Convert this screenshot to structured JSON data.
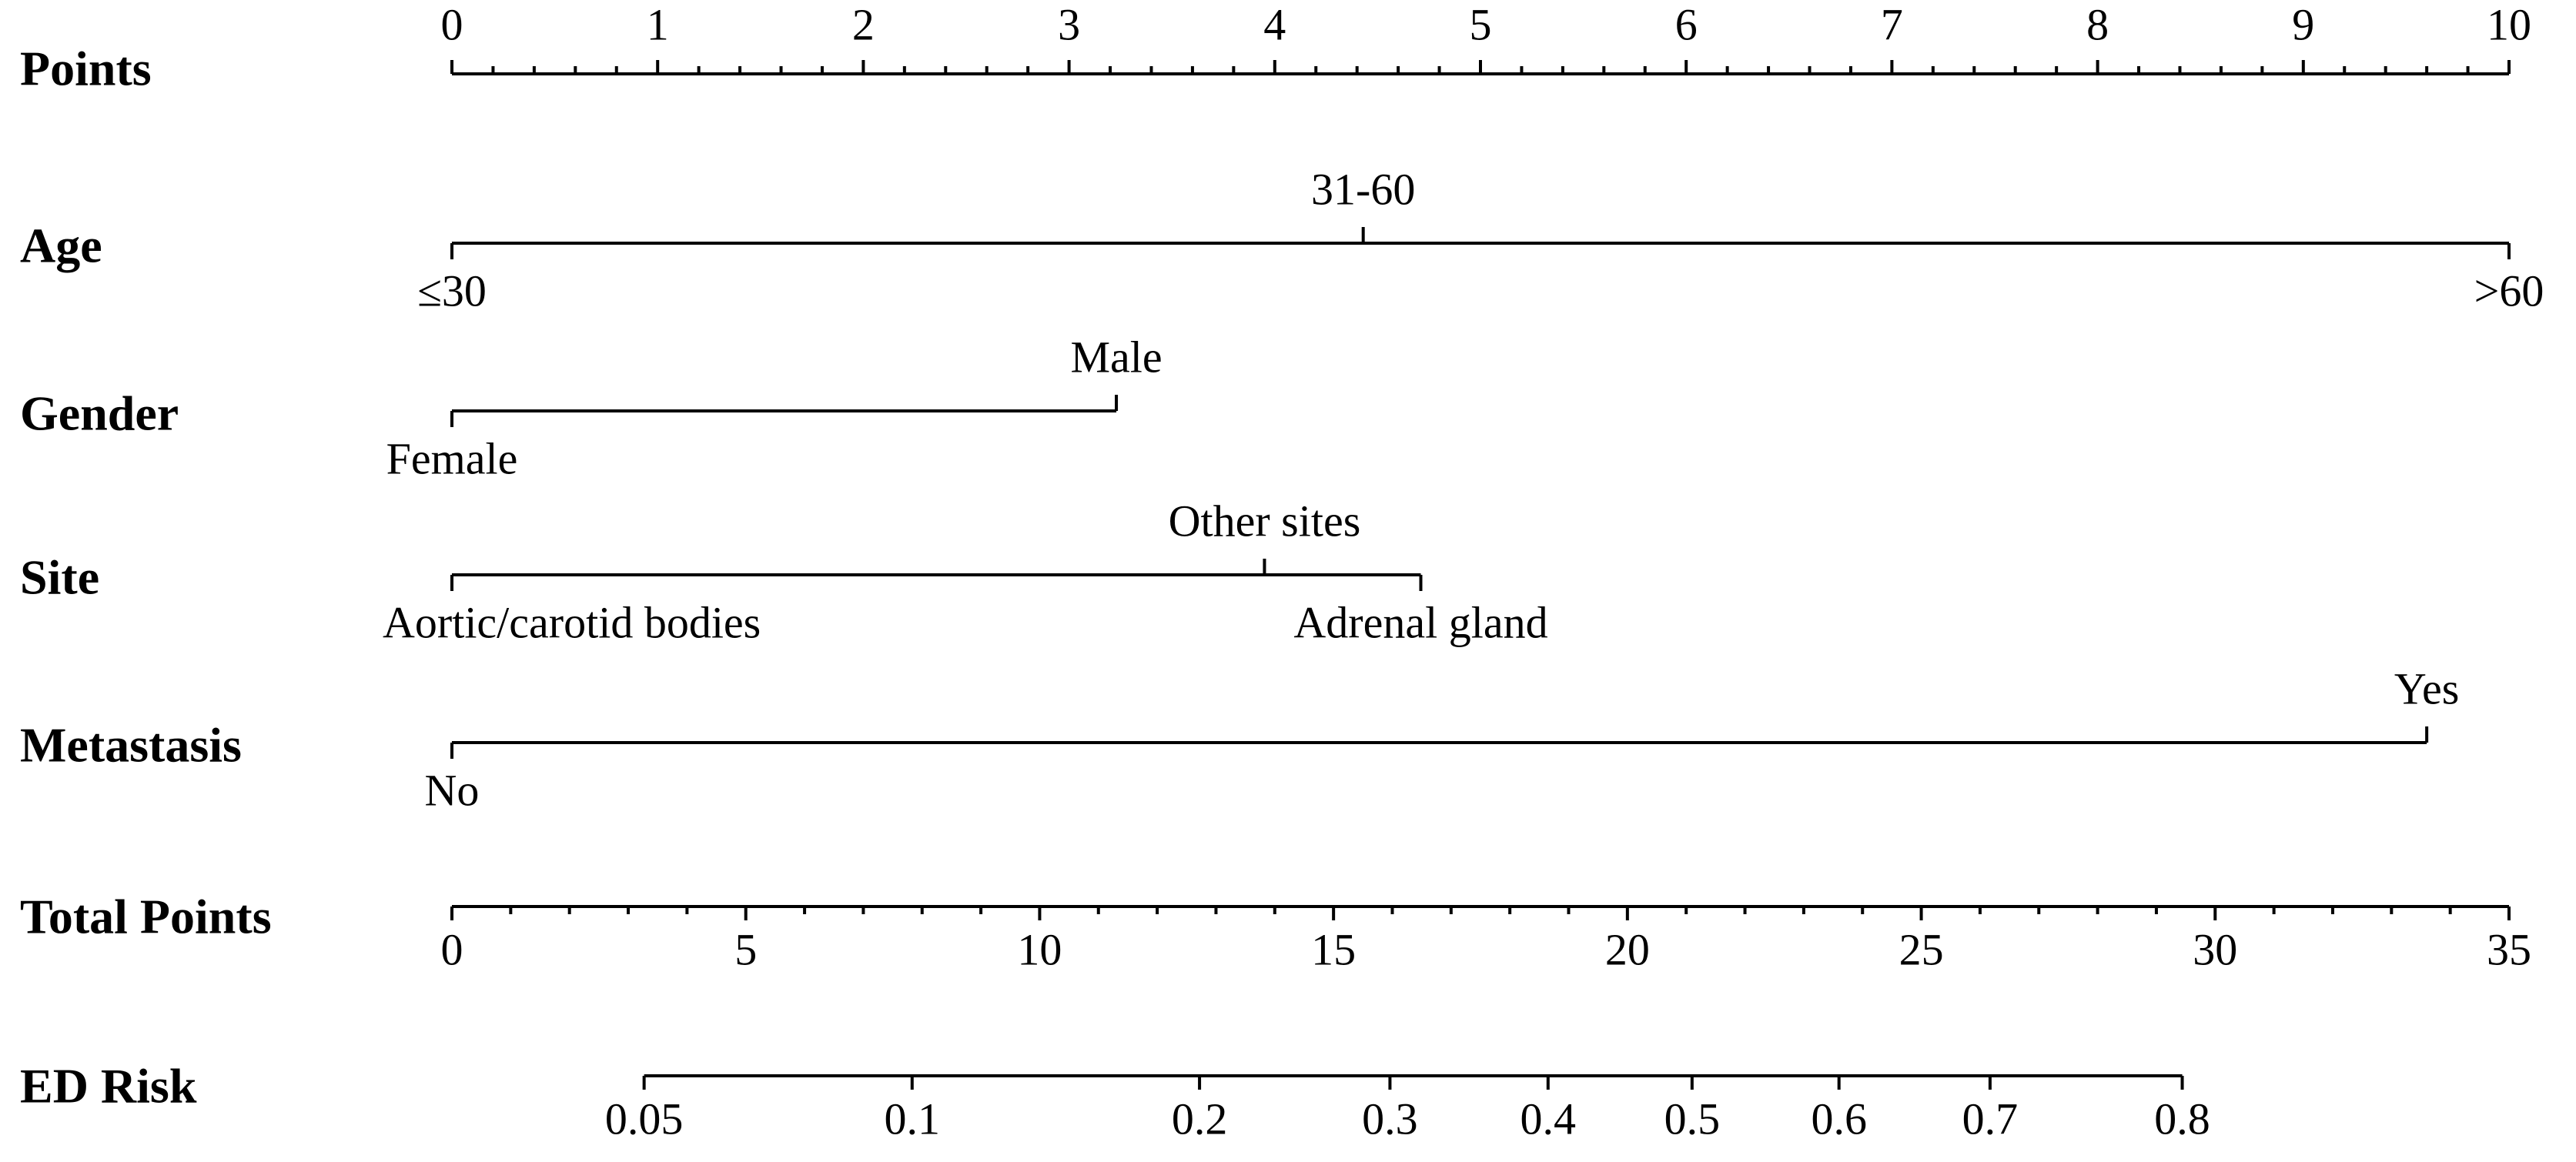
{
  "chart_data": {
    "type": "nomogram",
    "points_axis": {
      "label": "Points",
      "xlim": [
        0,
        10
      ],
      "xticks": [
        0,
        1,
        2,
        3,
        4,
        5,
        6,
        7,
        8,
        9,
        10
      ],
      "minor_ticks": [
        0.2,
        0.4,
        0.6,
        0.8,
        1.2,
        1.4,
        1.6,
        1.8,
        2.2,
        2.4,
        2.6,
        2.8,
        3.2,
        3.4,
        3.6,
        3.8,
        4.2,
        4.4,
        4.6,
        4.8,
        5.2,
        5.4,
        5.6,
        5.8,
        6.2,
        6.4,
        6.6,
        6.8,
        7.2,
        7.4,
        7.6,
        7.8,
        8.2,
        8.4,
        8.6,
        8.8,
        9.2,
        9.4,
        9.6,
        9.8
      ]
    },
    "variables": [
      {
        "name": "Age",
        "levels": [
          "≤30",
          "31-60",
          ">60"
        ],
        "points": [
          0,
          4.43,
          10
        ]
      },
      {
        "name": "Gender",
        "levels": [
          "Female",
          "Male"
        ],
        "points": [
          0,
          3.23
        ]
      },
      {
        "name": "Site",
        "levels": [
          "Aortic/carotid bodies",
          "Other sites",
          "Adrenal gland"
        ],
        "points": [
          0,
          3.95,
          4.71
        ]
      },
      {
        "name": "Metastasis",
        "levels": [
          "No",
          "Yes"
        ],
        "points": [
          0,
          9.6
        ]
      }
    ],
    "total_points_axis": {
      "label": "Total Points",
      "xlim": [
        0,
        35
      ],
      "xticks": [
        0,
        5,
        10,
        15,
        20,
        25,
        30,
        35
      ],
      "minor_ticks": [
        1,
        2,
        3,
        4,
        6,
        7,
        8,
        9,
        11,
        12,
        13,
        14,
        16,
        17,
        18,
        19,
        21,
        22,
        23,
        24,
        26,
        27,
        28,
        29,
        31,
        32,
        33,
        34
      ]
    },
    "risk_axis": {
      "label": "ED Risk",
      "ticks": [
        0.05,
        0.1,
        0.2,
        0.3,
        0.4,
        0.5,
        0.6,
        0.7,
        0.8
      ],
      "total_points": [
        3.27,
        7.83,
        12.72,
        15.96,
        18.65,
        21.1,
        23.6,
        26.17,
        29.44
      ]
    }
  }
}
